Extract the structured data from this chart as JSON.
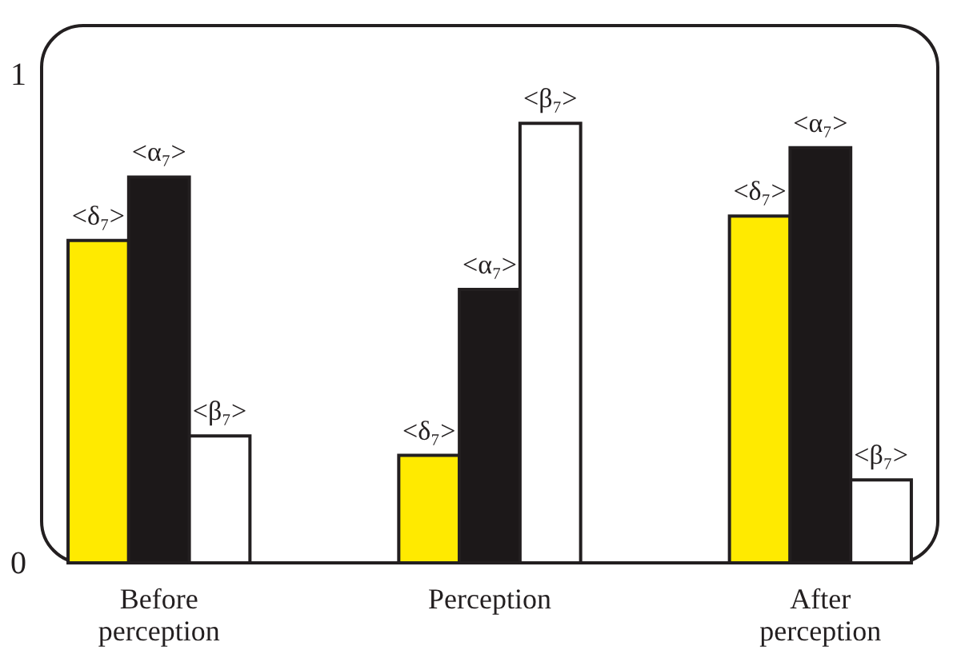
{
  "chart_data": {
    "type": "bar",
    "categories": [
      "Before perception",
      "Perception",
      "After perception"
    ],
    "series": [
      {
        "name": "<δ₇>",
        "color": "#ffea00",
        "values": [
          0.66,
          0.22,
          0.71
        ]
      },
      {
        "name": "<α₇>",
        "color": "#1c1819",
        "values": [
          0.79,
          0.56,
          0.85
        ]
      },
      {
        "name": "<β₇>",
        "color": "#ffffff",
        "values": [
          0.26,
          0.9,
          0.17
        ]
      }
    ],
    "ylim": [
      0,
      1.1
    ],
    "yticks": [
      0,
      1
    ]
  }
}
